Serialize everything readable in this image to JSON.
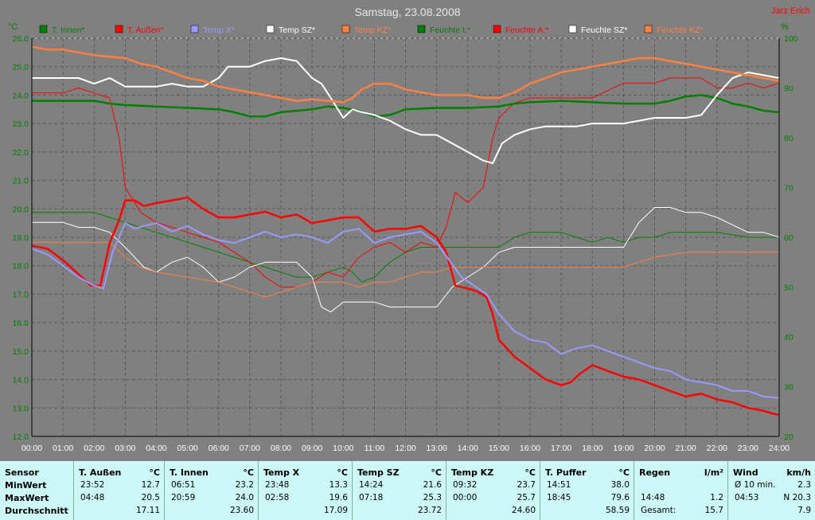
{
  "chart_data": {
    "type": "line",
    "title": "Samstag, 23.08.2008",
    "author": "Jarz Erich",
    "y_left_unit": "°C",
    "y_right_unit": "%",
    "ylim_left": [
      12,
      26
    ],
    "ylim_right": [
      20,
      100
    ],
    "yticks_left": [
      "12.0",
      "13.0",
      "14.0",
      "15.0",
      "16.0",
      "17.0",
      "18.0",
      "19.0",
      "20.0",
      "21.0",
      "22.0",
      "23.0",
      "24.0",
      "25.0",
      "26.0"
    ],
    "yticks_right": [
      "20",
      "30",
      "40",
      "50",
      "60",
      "70",
      "80",
      "90",
      "100"
    ],
    "xticks": [
      "00:00",
      "01:00",
      "02:00",
      "03:00",
      "04:00",
      "05:00",
      "06:00",
      "07:00",
      "08:00",
      "09:00",
      "10:00",
      "11:00",
      "12:00",
      "13:00",
      "14:00",
      "15:00",
      "16:00",
      "17:00",
      "18:00",
      "19:00",
      "20:00",
      "21:00",
      "22:00",
      "23:00",
      "24:00"
    ],
    "grid": true,
    "legend": [
      {
        "name": "T. Innen*",
        "color": "#008000"
      },
      {
        "name": "T. Außen*",
        "color": "#ff0000"
      },
      {
        "name": "Temp X*",
        "color": "#9999ff"
      },
      {
        "name": "Temp SZ*",
        "color": "#ffffff"
      },
      {
        "name": "Temp KZ*",
        "color": "#ff8040"
      },
      {
        "name": "Feuchte I.*",
        "color": "#008000"
      },
      {
        "name": "Feuchte A.*",
        "color": "#ff0000"
      },
      {
        "name": "Feuchte SZ*",
        "color": "#ffffff"
      },
      {
        "name": "Feuchte KZ*",
        "color": "#ff8040"
      }
    ],
    "series": [
      {
        "name": "T. Innen*",
        "axis": "left",
        "color": "#008000",
        "width": 2.5,
        "x": [
          0,
          2,
          2.5,
          3,
          4,
          5,
          6,
          6.5,
          7,
          7.5,
          8,
          9,
          9.5,
          10,
          10.5,
          11,
          11.5,
          12,
          13,
          14,
          15,
          15.5,
          16,
          17,
          18,
          19,
          20,
          20.5,
          21,
          21.5,
          22,
          22.5,
          23,
          23.5,
          24
        ],
        "y": [
          23.8,
          23.8,
          23.7,
          23.65,
          23.6,
          23.55,
          23.5,
          23.4,
          23.25,
          23.25,
          23.4,
          23.5,
          23.6,
          23.55,
          23.45,
          23.25,
          23.3,
          23.5,
          23.55,
          23.55,
          23.6,
          23.7,
          23.75,
          23.8,
          23.75,
          23.7,
          23.7,
          23.8,
          23.95,
          24.0,
          23.9,
          23.7,
          23.6,
          23.45,
          23.4
        ]
      },
      {
        "name": "T. Außen*",
        "axis": "left",
        "color": "#ff0000",
        "width": 2.5,
        "x": [
          0,
          0.5,
          1,
          1.5,
          1.9,
          2.2,
          2.5,
          2.8,
          3,
          3.3,
          3.6,
          4,
          4.5,
          5,
          5.5,
          6,
          6.5,
          7,
          7.5,
          8,
          8.5,
          9,
          9.5,
          10,
          10.5,
          11,
          11.5,
          12,
          12.5,
          13,
          13.3,
          13.6,
          14,
          14.3,
          14.6,
          14.8,
          15,
          15.5,
          16,
          16.5,
          17,
          17.3,
          17.6,
          18,
          18.5,
          19,
          19.5,
          20,
          20.5,
          21,
          21.5,
          22,
          22.5,
          23,
          23.5,
          23.8,
          24
        ],
        "y": [
          18.7,
          18.6,
          18.2,
          17.7,
          17.3,
          17.3,
          18.8,
          19.6,
          20.3,
          20.3,
          20.1,
          20.2,
          20.3,
          20.4,
          20.0,
          19.7,
          19.7,
          19.8,
          19.9,
          19.7,
          19.8,
          19.5,
          19.6,
          19.7,
          19.7,
          19.2,
          19.3,
          19.3,
          19.4,
          19.0,
          18.5,
          17.3,
          17.2,
          17.1,
          16.9,
          16.3,
          15.4,
          14.8,
          14.4,
          14.0,
          13.8,
          13.9,
          14.2,
          14.5,
          14.3,
          14.1,
          14.0,
          13.8,
          13.6,
          13.4,
          13.5,
          13.3,
          13.2,
          13.0,
          12.9,
          12.8,
          12.75
        ]
      },
      {
        "name": "Temp X*",
        "axis": "left",
        "color": "#9999ff",
        "width": 2,
        "x": [
          0,
          0.5,
          1,
          1.5,
          2,
          2.3,
          2.6,
          3,
          3.3,
          3.6,
          4,
          4.5,
          5,
          5.5,
          6,
          6.5,
          7,
          7.5,
          8,
          8.5,
          9,
          9.5,
          10,
          10.5,
          11,
          11.5,
          12,
          12.5,
          13,
          13.4,
          13.8,
          14.2,
          14.6,
          15,
          15.5,
          16,
          16.5,
          17,
          17.5,
          18,
          18.5,
          19,
          19.5,
          20,
          20.5,
          21,
          21.5,
          22,
          22.5,
          23,
          23.5,
          24
        ],
        "y": [
          18.6,
          18.4,
          18.0,
          17.6,
          17.3,
          17.2,
          18.5,
          19.5,
          19.3,
          19.4,
          19.5,
          19.2,
          19.4,
          19.1,
          18.9,
          18.8,
          19.0,
          19.2,
          19.0,
          19.1,
          19.0,
          18.8,
          19.2,
          19.3,
          18.8,
          19.0,
          19.1,
          19.2,
          18.8,
          18.2,
          17.6,
          17.3,
          17.0,
          16.3,
          15.7,
          15.4,
          15.3,
          14.9,
          15.1,
          15.2,
          15.0,
          14.8,
          14.6,
          14.4,
          14.3,
          14.0,
          13.9,
          13.8,
          13.6,
          13.6,
          13.4,
          13.35
        ]
      },
      {
        "name": "Temp SZ*",
        "axis": "left",
        "color": "#ffffff",
        "width": 2,
        "x": [
          0,
          0.5,
          1,
          1.5,
          2,
          2.5,
          3,
          3.5,
          4,
          4.5,
          5,
          5.5,
          6,
          6.3,
          6.6,
          7,
          7.5,
          8,
          8.5,
          9,
          9.3,
          9.6,
          10,
          10.3,
          10.6,
          11,
          11.5,
          12,
          12.5,
          13,
          13.5,
          14,
          14.5,
          14.8,
          15.1,
          15.5,
          16,
          16.5,
          17,
          17.5,
          18,
          18.5,
          19,
          19.5,
          20,
          20.5,
          21,
          21.5,
          22,
          22.5,
          23,
          23.5,
          24
        ],
        "y": [
          24.6,
          24.6,
          24.6,
          24.6,
          24.4,
          24.6,
          24.3,
          24.3,
          24.3,
          24.4,
          24.3,
          24.3,
          24.6,
          25.0,
          25.0,
          25.0,
          25.2,
          25.3,
          25.2,
          24.6,
          24.4,
          23.9,
          23.2,
          23.5,
          23.4,
          23.3,
          23.1,
          22.8,
          22.6,
          22.6,
          22.3,
          22.0,
          21.7,
          21.6,
          22.3,
          22.6,
          22.8,
          22.9,
          22.9,
          22.9,
          23.0,
          23.0,
          23.0,
          23.1,
          23.2,
          23.2,
          23.2,
          23.3,
          24.0,
          24.6,
          24.8,
          24.7,
          24.6
        ]
      },
      {
        "name": "Temp KZ*",
        "axis": "left",
        "color": "#ff8040",
        "width": 2.5,
        "x": [
          0,
          0.5,
          1,
          2,
          3,
          3.5,
          4,
          4.5,
          5,
          5.5,
          6,
          6.5,
          7,
          7.5,
          8,
          8.5,
          9,
          9.5,
          10,
          10.3,
          10.6,
          11,
          11.5,
          12,
          13,
          14,
          14.5,
          15,
          15.5,
          16,
          16.5,
          17,
          17.5,
          18,
          18.5,
          19,
          19.5,
          20,
          20.5,
          21,
          21.5,
          22,
          22.5,
          23,
          23.5,
          24
        ],
        "y": [
          25.7,
          25.6,
          25.6,
          25.4,
          25.3,
          25.1,
          25.0,
          24.8,
          24.6,
          24.5,
          24.3,
          24.2,
          24.1,
          24.0,
          23.9,
          23.8,
          23.85,
          23.8,
          23.75,
          23.9,
          24.2,
          24.4,
          24.4,
          24.2,
          24.0,
          24.0,
          23.9,
          23.9,
          24.1,
          24.4,
          24.6,
          24.8,
          24.9,
          25.0,
          25.1,
          25.2,
          25.3,
          25.3,
          25.2,
          25.1,
          25.0,
          24.9,
          24.8,
          24.7,
          24.6,
          24.5
        ]
      },
      {
        "name": "Feuchte I.*",
        "axis": "right",
        "color": "#008000",
        "width": 1,
        "x": [
          0,
          2,
          2.5,
          3,
          3.5,
          4,
          4.5,
          5,
          5.5,
          6,
          6.5,
          7,
          7.5,
          8,
          8.5,
          9,
          9.5,
          10,
          10.3,
          10.6,
          11,
          11.5,
          12,
          12.5,
          13,
          14,
          15,
          15.5,
          16,
          16.5,
          17,
          17.5,
          18,
          18.5,
          19,
          19.5,
          20,
          20.5,
          21,
          22,
          23,
          24
        ],
        "y": [
          65,
          65,
          64,
          63,
          62,
          61,
          60,
          59,
          58,
          57,
          56,
          55,
          54,
          53,
          52,
          52,
          53,
          54,
          53,
          51,
          52,
          55,
          57,
          58,
          58,
          58,
          58,
          60,
          61,
          61,
          61,
          60,
          59,
          60,
          59,
          60,
          60,
          61,
          61,
          61,
          60,
          60
        ]
      },
      {
        "name": "Feuchte A.*",
        "axis": "right",
        "color": "#ff0000",
        "width": 1,
        "x": [
          0,
          1,
          1.5,
          2,
          2.5,
          2.8,
          3,
          3.5,
          4,
          4.5,
          5,
          5.5,
          6,
          6.5,
          7,
          7.5,
          8,
          8.5,
          9,
          9.5,
          10,
          10.5,
          11,
          11.5,
          12,
          12.5,
          13,
          13.3,
          13.6,
          14,
          14.5,
          14.8,
          15,
          15.5,
          16,
          17,
          18,
          19,
          20,
          20.5,
          21,
          21.5,
          22,
          22.5,
          23,
          23.5,
          24
        ],
        "y": [
          89,
          89,
          90,
          89,
          88,
          80,
          70,
          65,
          63,
          62,
          61,
          60,
          59,
          57,
          55,
          52,
          50,
          50,
          51,
          53,
          52,
          56,
          58,
          59,
          57,
          59,
          58,
          62,
          69,
          67,
          70,
          80,
          84,
          87,
          88,
          88,
          88,
          91,
          91,
          92,
          92,
          92,
          90,
          90,
          91,
          90,
          91
        ]
      },
      {
        "name": "Feuchte SZ*",
        "axis": "right",
        "color": "#ffffff",
        "width": 1,
        "x": [
          0,
          1,
          1.5,
          2,
          2.5,
          3,
          3.3,
          3.6,
          4,
          4.5,
          5,
          5.5,
          6,
          6.5,
          7,
          7.5,
          8,
          8.5,
          9,
          9.3,
          9.6,
          10,
          10.5,
          11,
          11.5,
          12,
          12.5,
          13,
          13.5,
          14,
          14.5,
          15,
          15.5,
          16,
          17,
          18,
          19,
          19.5,
          20,
          20.5,
          21,
          21.5,
          22,
          23,
          23.5,
          24
        ],
        "y": [
          63,
          63,
          62,
          62,
          61,
          58,
          56,
          54,
          53,
          55,
          56,
          54,
          51,
          52,
          54,
          55,
          55,
          55,
          52,
          46,
          45,
          47,
          47,
          47,
          46,
          46,
          46,
          46,
          50,
          52,
          54,
          57,
          58,
          58,
          58,
          58,
          58,
          63,
          66,
          66,
          65,
          65,
          64,
          61,
          61,
          60
        ]
      },
      {
        "name": "Feuchte KZ*",
        "axis": "right",
        "color": "#ff8040",
        "width": 1,
        "x": [
          0,
          1,
          2,
          2.5,
          3,
          3.5,
          4,
          5,
          6,
          6.5,
          7,
          7.5,
          8,
          8.5,
          9,
          9.5,
          10,
          10.5,
          11,
          11.5,
          12,
          12.5,
          13,
          13.5,
          14,
          15,
          16,
          17,
          18,
          19,
          19.5,
          20,
          21,
          22,
          23,
          24
        ],
        "y": [
          59,
          59,
          59,
          59,
          56,
          54,
          53,
          52,
          51,
          50,
          49,
          48,
          49,
          50,
          51,
          51,
          51,
          50,
          51,
          51,
          52,
          53,
          53,
          54,
          54,
          54,
          54,
          54,
          54,
          54,
          55,
          56,
          57,
          57,
          57,
          57
        ]
      }
    ]
  },
  "table": {
    "row_labels": [
      "Sensor",
      "MinWert",
      "MaxWert",
      "Durchschnitt"
    ],
    "columns": [
      {
        "name": "T. Außen",
        "unit": "°C",
        "min_time": "23:52",
        "min_val": "12.7",
        "max_time": "04:48",
        "max_val": "20.5",
        "avg": "17.11"
      },
      {
        "name": "T. Innen",
        "unit": "°C",
        "min_time": "06:51",
        "min_val": "23.2",
        "max_time": "20:59",
        "max_val": "24.0",
        "avg": "23.60"
      },
      {
        "name": "Temp X",
        "unit": "°C",
        "min_time": "23:48",
        "min_val": "13.3",
        "max_time": "02:58",
        "max_val": "19.6",
        "avg": "17.09"
      },
      {
        "name": "Temp SZ",
        "unit": "°C",
        "min_time": "14:24",
        "min_val": "21.6",
        "max_time": "07:18",
        "max_val": "25.3",
        "avg": "23.72"
      },
      {
        "name": "Temp KZ",
        "unit": "°C",
        "min_time": "09:32",
        "min_val": "23.7",
        "max_time": "00:00",
        "max_val": "25.7",
        "avg": "24.60"
      },
      {
        "name": "T. Puffer",
        "unit": "°C",
        "min_time": "14:51",
        "min_val": "38.0",
        "max_time": "18:45",
        "max_val": "79.6",
        "avg": "58.59"
      },
      {
        "name": "Regen",
        "unit": "l/m²",
        "min_time": "",
        "min_val": "",
        "max_time": "14:48",
        "max_val": "1.2",
        "avg_label": "Gesamt:",
        "avg": "15.7"
      },
      {
        "name": "Wind",
        "unit": "km/h",
        "min_time": "Ø 10 min.",
        "min_val": "2.3",
        "max_time": "04:53",
        "max_val": "N 20.3",
        "avg": "7.9"
      }
    ]
  }
}
